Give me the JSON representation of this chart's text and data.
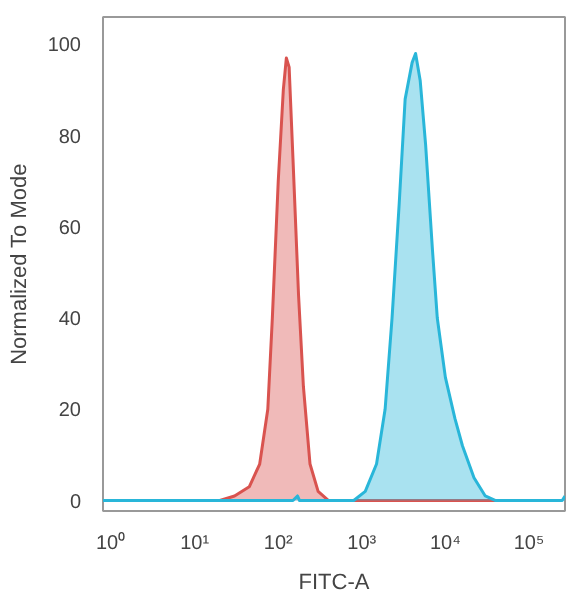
{
  "chart_data": {
    "type": "area",
    "xlabel": "FITC-A",
    "ylabel": "Normalized To Mode",
    "log": "x",
    "grid": false,
    "xlim": [
      0.8,
      270000
    ],
    "ylim": [
      -2.3,
      106
    ],
    "xticks": [
      {
        "value": 1,
        "label": "10⁰"
      },
      {
        "value": 10,
        "label": "10¹"
      },
      {
        "value": 100,
        "label": "10²"
      },
      {
        "value": 1000,
        "label": "10³"
      },
      {
        "value": 10000,
        "label": "10⁴"
      },
      {
        "value": 100000,
        "label": "10⁵"
      }
    ],
    "yticks": [
      0,
      20,
      40,
      60,
      80,
      100
    ],
    "series": [
      {
        "color": "#d9534f",
        "x": [
          0.8,
          20,
          30,
          45,
          60,
          75,
          85,
          100,
          115,
          125,
          135,
          150,
          175,
          200,
          240,
          300,
          400,
          40000
        ],
        "values": [
          0,
          0,
          1,
          3,
          8,
          20,
          40,
          70,
          90,
          97,
          95,
          75,
          45,
          25,
          8,
          2,
          0,
          0
        ]
      },
      {
        "color": "#29b6d9",
        "x": [
          0.8,
          150,
          170,
          180,
          800,
          1100,
          1500,
          1900,
          2300,
          2800,
          3300,
          4000,
          4400,
          5000,
          5800,
          7000,
          8000,
          10000,
          13000,
          16000,
          22000,
          30000,
          40000,
          250000,
          270000
        ],
        "values": [
          0,
          0,
          1,
          0,
          0,
          2,
          8,
          20,
          40,
          65,
          88,
          96,
          98,
          92,
          78,
          55,
          40,
          27,
          18,
          12,
          5,
          1,
          0,
          0,
          1
        ]
      }
    ]
  }
}
